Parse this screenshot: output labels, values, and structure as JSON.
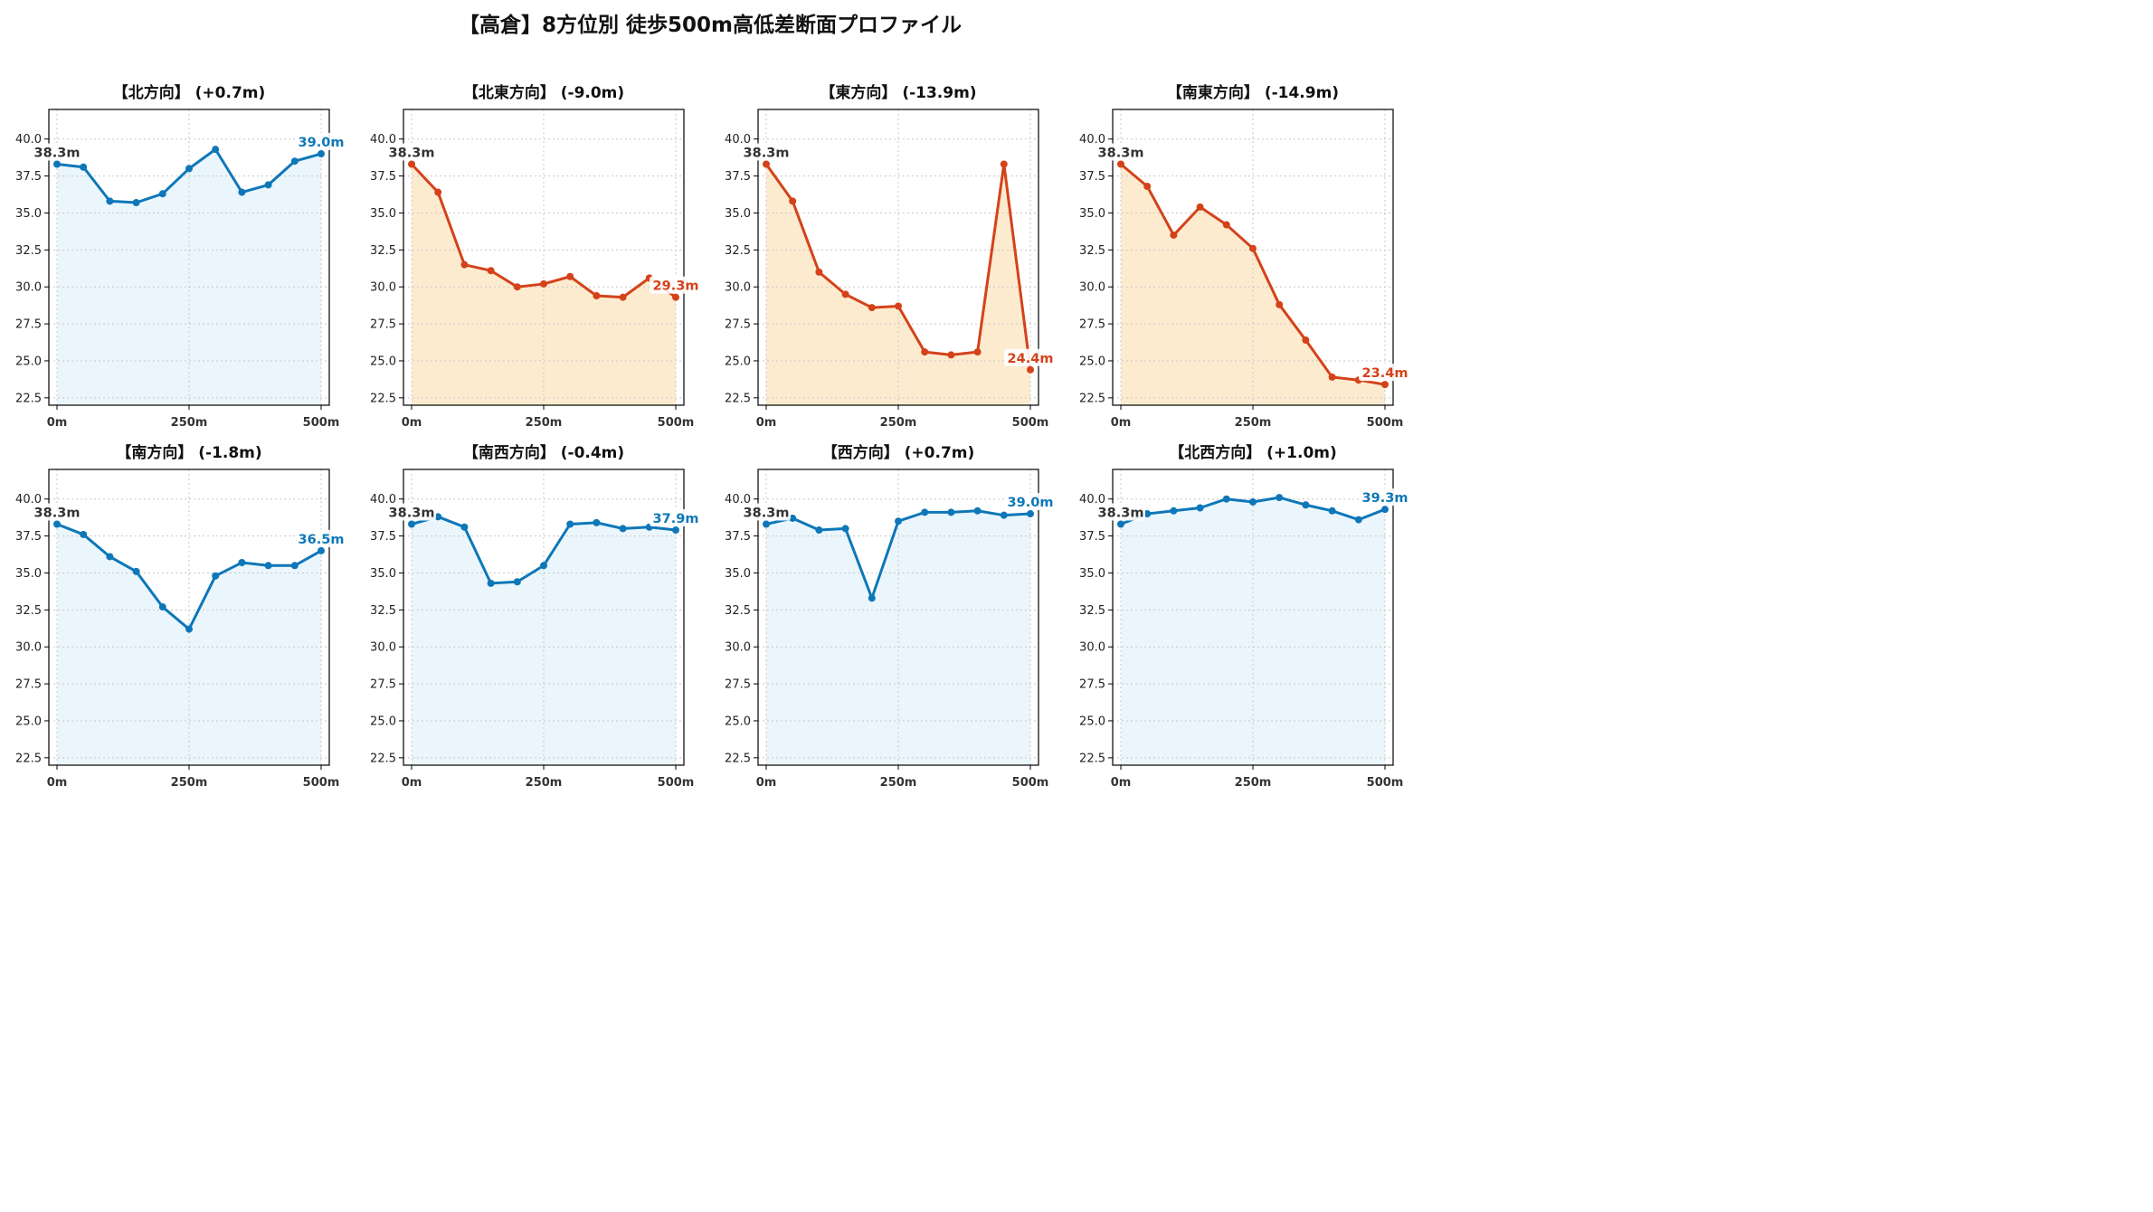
{
  "page": {
    "title": "【高倉】8方位別 徒歩500m高低差断面プロファイル"
  },
  "colors": {
    "up_line": "#0e77b8",
    "up_fill": "#eaf6fc",
    "down_line": "#d4421a",
    "down_fill": "#fdebd0",
    "start_label": "#333333"
  },
  "chart_data": [
    {
      "type": "area",
      "title": "【北方向】 (+0.7m)",
      "trend": "up",
      "x": [
        0,
        50,
        100,
        150,
        200,
        250,
        300,
        350,
        400,
        450,
        500
      ],
      "y": [
        38.3,
        38.1,
        35.8,
        35.7,
        36.3,
        38.0,
        39.3,
        36.4,
        36.9,
        38.5,
        39.0
      ],
      "x_ticks": [
        "0m",
        "250m",
        "500m"
      ],
      "y_ticks": [
        "22.5",
        "25.0",
        "27.5",
        "30.0",
        "32.5",
        "35.0",
        "37.5",
        "40.0"
      ],
      "start_label": "38.3m",
      "end_label": "39.0m",
      "ylim": [
        22.0,
        42.0
      ],
      "grid": true
    },
    {
      "type": "area",
      "title": "【北東方向】 (-9.0m)",
      "trend": "down",
      "x": [
        0,
        50,
        100,
        150,
        200,
        250,
        300,
        350,
        400,
        450,
        500
      ],
      "y": [
        38.3,
        36.4,
        31.5,
        31.1,
        30.0,
        30.2,
        30.7,
        29.4,
        29.3,
        30.6,
        29.3
      ],
      "x_ticks": [
        "0m",
        "250m",
        "500m"
      ],
      "y_ticks": [
        "22.5",
        "25.0",
        "27.5",
        "30.0",
        "32.5",
        "35.0",
        "37.5",
        "40.0"
      ],
      "start_label": "38.3m",
      "end_label": "29.3m",
      "ylim": [
        22.0,
        42.0
      ],
      "grid": true
    },
    {
      "type": "area",
      "title": "【東方向】 (-13.9m)",
      "trend": "down",
      "x": [
        0,
        50,
        100,
        150,
        200,
        250,
        300,
        350,
        400,
        450,
        500
      ],
      "y": [
        38.3,
        35.8,
        31.0,
        29.5,
        28.6,
        28.7,
        25.6,
        25.4,
        25.6,
        38.3,
        24.4
      ],
      "x_ticks": [
        "0m",
        "250m",
        "500m"
      ],
      "y_ticks": [
        "22.5",
        "25.0",
        "27.5",
        "30.0",
        "32.5",
        "35.0",
        "37.5",
        "40.0"
      ],
      "start_label": "38.3m",
      "end_label": "24.4m",
      "ylim": [
        22.0,
        42.0
      ],
      "grid": true
    },
    {
      "type": "area",
      "title": "【南東方向】 (-14.9m)",
      "trend": "down",
      "x": [
        0,
        50,
        100,
        150,
        200,
        250,
        300,
        350,
        400,
        450,
        500
      ],
      "y": [
        38.3,
        36.8,
        33.5,
        35.4,
        34.2,
        32.6,
        28.8,
        26.4,
        23.9,
        23.7,
        23.4
      ],
      "x_ticks": [
        "0m",
        "250m",
        "500m"
      ],
      "y_ticks": [
        "22.5",
        "25.0",
        "27.5",
        "30.0",
        "32.5",
        "35.0",
        "37.5",
        "40.0"
      ],
      "start_label": "38.3m",
      "end_label": "23.4m",
      "ylim": [
        22.0,
        42.0
      ],
      "grid": true
    },
    {
      "type": "area",
      "title": "【南方向】 (-1.8m)",
      "trend": "up",
      "x": [
        0,
        50,
        100,
        150,
        200,
        250,
        300,
        350,
        400,
        450,
        500
      ],
      "y": [
        38.3,
        37.6,
        36.1,
        35.1,
        32.7,
        31.2,
        34.8,
        35.7,
        35.5,
        35.5,
        36.5
      ],
      "x_ticks": [
        "0m",
        "250m",
        "500m"
      ],
      "y_ticks": [
        "22.5",
        "25.0",
        "27.5",
        "30.0",
        "32.5",
        "35.0",
        "37.5",
        "40.0"
      ],
      "start_label": "38.3m",
      "end_label": "36.5m",
      "ylim": [
        22.0,
        42.0
      ],
      "grid": true
    },
    {
      "type": "area",
      "title": "【南西方向】 (-0.4m)",
      "trend": "up",
      "x": [
        0,
        50,
        100,
        150,
        200,
        250,
        300,
        350,
        400,
        450,
        500
      ],
      "y": [
        38.3,
        38.8,
        38.1,
        34.3,
        34.4,
        35.5,
        38.3,
        38.4,
        38.0,
        38.1,
        37.9
      ],
      "x_ticks": [
        "0m",
        "250m",
        "500m"
      ],
      "y_ticks": [
        "22.5",
        "25.0",
        "27.5",
        "30.0",
        "32.5",
        "35.0",
        "37.5",
        "40.0"
      ],
      "start_label": "38.3m",
      "end_label": "37.9m",
      "ylim": [
        22.0,
        42.0
      ],
      "grid": true
    },
    {
      "type": "area",
      "title": "【西方向】 (+0.7m)",
      "trend": "up",
      "x": [
        0,
        50,
        100,
        150,
        200,
        250,
        300,
        350,
        400,
        450,
        500
      ],
      "y": [
        38.3,
        38.7,
        37.9,
        38.0,
        33.3,
        38.5,
        39.1,
        39.1,
        39.2,
        38.9,
        39.0
      ],
      "x_ticks": [
        "0m",
        "250m",
        "500m"
      ],
      "y_ticks": [
        "22.5",
        "25.0",
        "27.5",
        "30.0",
        "32.5",
        "35.0",
        "37.5",
        "40.0"
      ],
      "start_label": "38.3m",
      "end_label": "39.0m",
      "ylim": [
        22.0,
        42.0
      ],
      "grid": true
    },
    {
      "type": "area",
      "title": "【北西方向】 (+1.0m)",
      "trend": "up",
      "x": [
        0,
        50,
        100,
        150,
        200,
        250,
        300,
        350,
        400,
        450,
        500
      ],
      "y": [
        38.3,
        39.0,
        39.2,
        39.4,
        40.0,
        39.8,
        40.1,
        39.6,
        39.2,
        38.6,
        39.3
      ],
      "x_ticks": [
        "0m",
        "250m",
        "500m"
      ],
      "y_ticks": [
        "22.5",
        "25.0",
        "27.5",
        "30.0",
        "32.5",
        "35.0",
        "37.5",
        "40.0"
      ],
      "start_label": "38.3m",
      "end_label": "39.3m",
      "ylim": [
        22.0,
        42.0
      ],
      "grid": true
    }
  ]
}
